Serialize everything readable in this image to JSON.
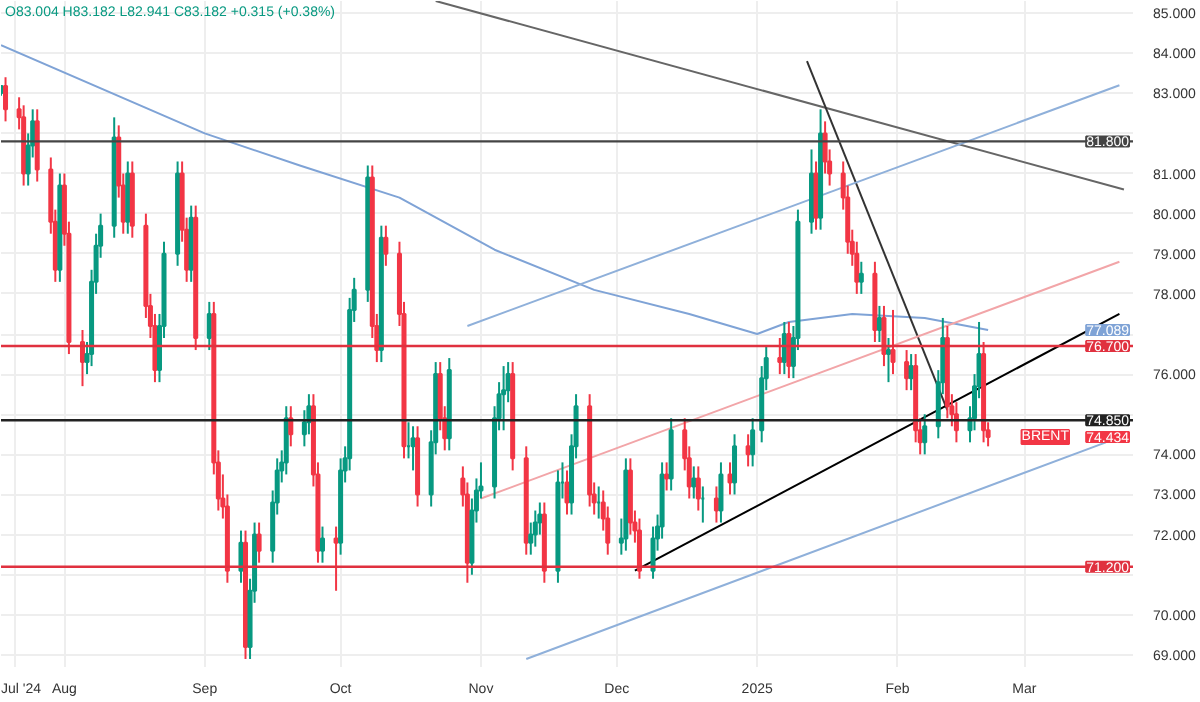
{
  "chart_data": {
    "type": "candlestick",
    "x": [
      "2024-07-18",
      "2024-07-19",
      "2024-07-22",
      "2024-07-23",
      "2024-07-24",
      "2024-07-25",
      "2024-07-26",
      "2024-07-29",
      "2024-07-30",
      "2024-07-31",
      "2024-08-01",
      "2024-08-02",
      "2024-08-05",
      "2024-08-06",
      "2024-08-07",
      "2024-08-08",
      "2024-08-09",
      "2024-08-12",
      "2024-08-13",
      "2024-08-14",
      "2024-08-15",
      "2024-08-16",
      "2024-08-19",
      "2024-08-20",
      "2024-08-21",
      "2024-08-22",
      "2024-08-23",
      "2024-08-26",
      "2024-08-27",
      "2024-08-28",
      "2024-08-29",
      "2024-08-30",
      "2024-09-02",
      "2024-09-03",
      "2024-09-04",
      "2024-09-05",
      "2024-09-06",
      "2024-09-09",
      "2024-09-10",
      "2024-09-11",
      "2024-09-12",
      "2024-09-13",
      "2024-09-16",
      "2024-09-17",
      "2024-09-18",
      "2024-09-19",
      "2024-09-20",
      "2024-09-23",
      "2024-09-24",
      "2024-09-25",
      "2024-09-26",
      "2024-09-27",
      "2024-09-30",
      "2024-10-01",
      "2024-10-02",
      "2024-10-03",
      "2024-10-04",
      "2024-10-07",
      "2024-10-08",
      "2024-10-09",
      "2024-10-10",
      "2024-10-11",
      "2024-10-14",
      "2024-10-15",
      "2024-10-16",
      "2024-10-17",
      "2024-10-18",
      "2024-10-21",
      "2024-10-22",
      "2024-10-23",
      "2024-10-24",
      "2024-10-25",
      "2024-10-28",
      "2024-10-29",
      "2024-10-30",
      "2024-10-31",
      "2024-11-01",
      "2024-11-04",
      "2024-11-05",
      "2024-11-06",
      "2024-11-07",
      "2024-11-08",
      "2024-11-11",
      "2024-11-12",
      "2024-11-13",
      "2024-11-14",
      "2024-11-15",
      "2024-11-18",
      "2024-11-19",
      "2024-11-20",
      "2024-11-21",
      "2024-11-22",
      "2024-11-25",
      "2024-11-26",
      "2024-11-27",
      "2024-11-28",
      "2024-11-29",
      "2024-12-02",
      "2024-12-03",
      "2024-12-04",
      "2024-12-05",
      "2024-12-06",
      "2024-12-09",
      "2024-12-10",
      "2024-12-11",
      "2024-12-12",
      "2024-12-13",
      "2024-12-16",
      "2024-12-17",
      "2024-12-18",
      "2024-12-19",
      "2024-12-20",
      "2024-12-23",
      "2024-12-24",
      "2024-12-26",
      "2024-12-27",
      "2024-12-30",
      "2024-12-31",
      "2025-01-02",
      "2025-01-03",
      "2025-01-06",
      "2025-01-07",
      "2025-01-08",
      "2025-01-09",
      "2025-01-10",
      "2025-01-13",
      "2025-01-14",
      "2025-01-15",
      "2025-01-16",
      "2025-01-17",
      "2025-01-20",
      "2025-01-21",
      "2025-01-22",
      "2025-01-23",
      "2025-01-24",
      "2025-01-27",
      "2025-01-28",
      "2025-01-29",
      "2025-01-30",
      "2025-01-31",
      "2025-02-03",
      "2025-02-04",
      "2025-02-05",
      "2025-02-06",
      "2025-02-07",
      "2025-02-10",
      "2025-02-11",
      "2025-02-12",
      "2025-02-13",
      "2025-02-14",
      "2025-02-17",
      "2025-02-18",
      "2025-02-19",
      "2025-02-20",
      "2025-02-21"
    ],
    "ohlc": [
      [
        83.004,
        83.182,
        82.941,
        83.182
      ],
      [
        83.18,
        83.4,
        82.3,
        82.6
      ],
      [
        82.6,
        82.9,
        82.1,
        82.4
      ],
      [
        82.4,
        82.7,
        80.7,
        81.0
      ],
      [
        81.0,
        82.0,
        80.7,
        81.7
      ],
      [
        81.7,
        82.6,
        81.4,
        82.3
      ],
      [
        82.3,
        82.6,
        80.8,
        81.1
      ],
      [
        81.1,
        81.4,
        79.5,
        79.8
      ],
      [
        79.8,
        80.1,
        78.3,
        78.6
      ],
      [
        78.6,
        81.0,
        78.3,
        80.7
      ],
      [
        80.7,
        81.0,
        79.2,
        79.5
      ],
      [
        79.5,
        79.8,
        76.5,
        76.8
      ],
      [
        76.8,
        77.1,
        75.7,
        76.3
      ],
      [
        76.3,
        76.8,
        76.0,
        76.5
      ],
      [
        76.5,
        78.6,
        76.2,
        78.3
      ],
      [
        78.3,
        79.5,
        78.0,
        79.2
      ],
      [
        79.2,
        80.0,
        78.9,
        79.7
      ],
      [
        79.7,
        82.4,
        79.4,
        81.9
      ],
      [
        81.9,
        82.2,
        80.4,
        80.7
      ],
      [
        80.7,
        81.0,
        79.5,
        79.8
      ],
      [
        79.8,
        81.3,
        79.5,
        81.0
      ],
      [
        81.0,
        81.3,
        79.4,
        79.7
      ],
      [
        79.7,
        80.0,
        77.4,
        77.7
      ],
      [
        77.7,
        78.0,
        76.9,
        77.2
      ],
      [
        77.2,
        77.5,
        75.8,
        76.1
      ],
      [
        76.1,
        77.5,
        75.8,
        77.2
      ],
      [
        77.2,
        79.3,
        76.9,
        79.0
      ],
      [
        79.0,
        81.3,
        78.7,
        81.0
      ],
      [
        81.0,
        81.3,
        79.3,
        79.6
      ],
      [
        79.6,
        79.9,
        78.3,
        78.6
      ],
      [
        78.6,
        80.2,
        78.3,
        79.9
      ],
      [
        79.9,
        80.2,
        76.6,
        76.9
      ],
      [
        76.9,
        77.8,
        76.6,
        77.5
      ],
      [
        77.5,
        77.8,
        73.5,
        73.8
      ],
      [
        73.8,
        74.1,
        72.6,
        72.9
      ],
      [
        72.9,
        73.5,
        72.4,
        72.7
      ],
      [
        72.7,
        73.0,
        70.8,
        71.1
      ],
      [
        71.1,
        72.1,
        70.8,
        71.8
      ],
      [
        71.8,
        72.1,
        68.9,
        69.2
      ],
      [
        69.2,
        70.9,
        68.9,
        70.6
      ],
      [
        70.6,
        72.3,
        70.3,
        72.0
      ],
      [
        72.0,
        72.3,
        71.3,
        71.6
      ],
      [
        71.6,
        73.1,
        71.3,
        72.8
      ],
      [
        72.8,
        73.9,
        72.5,
        73.6
      ],
      [
        73.6,
        74.1,
        73.3,
        73.8
      ],
      [
        73.8,
        75.2,
        73.5,
        74.9
      ],
      [
        74.9,
        75.2,
        74.2,
        74.5
      ],
      [
        74.5,
        75.1,
        74.2,
        74.8
      ],
      [
        74.8,
        75.5,
        74.5,
        75.2
      ],
      [
        75.2,
        75.5,
        73.2,
        73.5
      ],
      [
        73.5,
        73.8,
        71.3,
        71.6
      ],
      [
        71.6,
        72.2,
        71.3,
        71.9
      ],
      [
        71.9,
        72.2,
        70.6,
        71.8
      ],
      [
        71.8,
        73.9,
        71.5,
        73.6
      ],
      [
        73.6,
        74.2,
        73.3,
        73.9
      ],
      [
        73.9,
        77.9,
        73.6,
        77.6
      ],
      [
        77.6,
        78.4,
        77.3,
        78.1
      ],
      [
        78.1,
        81.2,
        77.8,
        80.9
      ],
      [
        80.9,
        81.2,
        76.9,
        77.2
      ],
      [
        77.2,
        77.5,
        76.3,
        76.6
      ],
      [
        76.6,
        79.7,
        76.3,
        79.4
      ],
      [
        79.4,
        79.7,
        78.7,
        79.0
      ],
      [
        79.0,
        79.3,
        77.2,
        77.5
      ],
      [
        77.5,
        77.8,
        73.9,
        74.2
      ],
      [
        74.2,
        74.8,
        73.9,
        74.2
      ],
      [
        74.2,
        74.7,
        73.6,
        74.4
      ],
      [
        74.4,
        74.7,
        72.7,
        73.0
      ],
      [
        73.0,
        74.6,
        72.7,
        74.3
      ],
      [
        74.3,
        76.3,
        74.0,
        76.0
      ],
      [
        76.0,
        76.3,
        74.6,
        74.9
      ],
      [
        74.9,
        75.2,
        74.1,
        74.4
      ],
      [
        74.4,
        76.4,
        74.1,
        76.1
      ],
      [
        73.4,
        73.7,
        72.7,
        73.0
      ],
      [
        73.0,
        73.3,
        70.8,
        71.3
      ],
      [
        71.3,
        72.9,
        71.0,
        72.6
      ],
      [
        72.6,
        73.4,
        72.3,
        73.1
      ],
      [
        73.1,
        73.8,
        72.9,
        73.2
      ],
      [
        73.2,
        75.2,
        72.9,
        74.9
      ],
      [
        74.9,
        75.8,
        74.6,
        75.5
      ],
      [
        75.5,
        76.2,
        74.6,
        75.6
      ],
      [
        75.6,
        76.3,
        75.3,
        76.0
      ],
      [
        76.0,
        76.3,
        73.6,
        73.9
      ],
      [
        73.9,
        74.2,
        71.5,
        71.8
      ],
      [
        71.8,
        72.3,
        71.5,
        72.0
      ],
      [
        72.0,
        72.6,
        71.7,
        72.3
      ],
      [
        72.3,
        72.8,
        72.0,
        72.5
      ],
      [
        72.5,
        72.8,
        70.8,
        71.1
      ],
      [
        71.1,
        73.6,
        70.8,
        73.3
      ],
      [
        73.3,
        73.8,
        72.9,
        73.3
      ],
      [
        73.3,
        73.6,
        72.5,
        72.8
      ],
      [
        72.8,
        74.5,
        72.5,
        74.2
      ],
      [
        74.2,
        75.5,
        73.9,
        75.2
      ],
      [
        75.2,
        75.5,
        72.7,
        73.0
      ],
      [
        73.0,
        73.3,
        72.5,
        72.8
      ],
      [
        72.8,
        73.2,
        72.4,
        72.8
      ],
      [
        72.8,
        73.1,
        72.1,
        72.4
      ],
      [
        72.4,
        72.7,
        71.5,
        71.8
      ],
      [
        71.8,
        72.4,
        71.5,
        71.9
      ],
      [
        71.9,
        73.9,
        71.6,
        73.6
      ],
      [
        73.6,
        73.9,
        72.0,
        72.3
      ],
      [
        72.3,
        72.6,
        71.8,
        72.1
      ],
      [
        72.1,
        72.4,
        70.9,
        71.1
      ],
      [
        71.1,
        72.2,
        70.9,
        71.9
      ],
      [
        71.9,
        72.5,
        71.6,
        72.2
      ],
      [
        72.2,
        73.8,
        71.9,
        73.5
      ],
      [
        73.5,
        73.8,
        73.1,
        73.4
      ],
      [
        73.4,
        74.9,
        73.1,
        74.6
      ],
      [
        74.6,
        74.9,
        73.6,
        73.9
      ],
      [
        73.9,
        74.2,
        72.9,
        73.2
      ],
      [
        73.2,
        73.7,
        72.9,
        73.4
      ],
      [
        73.4,
        73.7,
        72.6,
        72.9
      ],
      [
        72.9,
        73.2,
        72.3,
        72.9
      ],
      [
        72.9,
        73.2,
        72.3,
        72.6
      ],
      [
        72.6,
        73.8,
        72.3,
        73.5
      ],
      [
        73.5,
        73.8,
        73.0,
        73.3
      ],
      [
        73.3,
        74.5,
        73.0,
        74.2
      ],
      [
        74.2,
        74.5,
        73.7,
        74.0
      ],
      [
        74.0,
        74.9,
        73.7,
        74.6
      ],
      [
        74.6,
        76.2,
        74.3,
        75.9
      ],
      [
        75.9,
        76.7,
        75.6,
        76.4
      ],
      [
        76.4,
        76.9,
        76.0,
        76.3
      ],
      [
        76.3,
        77.3,
        76.0,
        77.0
      ],
      [
        77.0,
        77.3,
        75.9,
        76.2
      ],
      [
        76.2,
        77.2,
        75.9,
        76.9
      ],
      [
        76.9,
        80.1,
        76.6,
        79.8
      ],
      [
        79.8,
        81.6,
        79.5,
        81.0
      ],
      [
        81.0,
        81.3,
        79.6,
        79.9
      ],
      [
        79.9,
        82.6,
        79.6,
        82.0
      ],
      [
        82.0,
        82.3,
        81.0,
        81.3
      ],
      [
        81.3,
        81.6,
        80.7,
        81.0
      ],
      [
        81.0,
        81.3,
        80.1,
        80.4
      ],
      [
        80.4,
        80.7,
        79.0,
        79.3
      ],
      [
        79.3,
        79.6,
        78.7,
        79.0
      ],
      [
        79.0,
        79.3,
        78.0,
        78.3
      ],
      [
        78.3,
        78.8,
        78.0,
        78.5
      ],
      [
        78.5,
        78.8,
        76.8,
        77.1
      ],
      [
        77.1,
        77.7,
        76.8,
        77.4
      ],
      [
        77.4,
        77.7,
        76.2,
        76.5
      ],
      [
        76.5,
        76.9,
        75.8,
        76.6
      ],
      [
        76.6,
        77.6,
        76.0,
        76.3
      ],
      [
        76.3,
        76.6,
        75.6,
        75.9
      ],
      [
        75.9,
        76.5,
        75.6,
        76.2
      ],
      [
        76.2,
        76.5,
        74.3,
        74.6
      ],
      [
        74.6,
        74.9,
        74.0,
        74.3
      ],
      [
        74.3,
        75.0,
        74.0,
        74.7
      ],
      [
        74.7,
        76.1,
        74.4,
        75.8
      ],
      [
        75.8,
        77.4,
        75.5,
        76.9
      ],
      [
        76.9,
        77.2,
        74.9,
        75.2
      ],
      [
        75.2,
        75.5,
        74.7,
        75.0
      ],
      [
        75.0,
        75.3,
        74.3,
        74.6
      ],
      [
        74.6,
        75.2,
        74.3,
        74.9
      ],
      [
        74.9,
        76.0,
        74.6,
        75.7
      ],
      [
        75.7,
        77.3,
        75.4,
        76.5
      ],
      [
        76.5,
        76.8,
        74.3,
        74.6
      ],
      [
        74.6,
        74.8,
        74.2,
        74.434
      ]
    ],
    "colors": [
      "#089981",
      "#f23645",
      "#f23645",
      "#f23645",
      "#089981",
      "#089981",
      "#f23645",
      "#f23645",
      "#f23645",
      "#089981",
      "#f23645",
      "#f23645",
      "#f23645",
      "#089981",
      "#089981",
      "#089981",
      "#089981",
      "#089981",
      "#f23645",
      "#f23645",
      "#089981",
      "#f23645",
      "#f23645",
      "#f23645",
      "#f23645",
      "#089981",
      "#089981",
      "#089981",
      "#f23645",
      "#f23645",
      "#089981",
      "#f23645",
      "#089981",
      "#f23645",
      "#f23645",
      "#f23645",
      "#f23645",
      "#089981",
      "#f23645",
      "#089981",
      "#089981",
      "#f23645",
      "#089981",
      "#089981",
      "#089981",
      "#089981",
      "#f23645",
      "#089981",
      "#089981",
      "#f23645",
      "#f23645",
      "#089981",
      "#f23645",
      "#089981",
      "#089981",
      "#089981",
      "#089981",
      "#089981",
      "#f23645",
      "#f23645",
      "#089981",
      "#f23645",
      "#f23645",
      "#f23645",
      "#089981",
      "#089981",
      "#f23645",
      "#089981",
      "#089981",
      "#f23645",
      "#f23645",
      "#089981",
      "#f23645",
      "#f23645",
      "#089981",
      "#089981",
      "#089981",
      "#089981",
      "#089981",
      "#089981",
      "#089981",
      "#f23645",
      "#f23645",
      "#089981",
      "#089981",
      "#089981",
      "#f23645",
      "#089981",
      "#089981",
      "#f23645",
      "#089981",
      "#089981",
      "#f23645",
      "#f23645",
      "#089981",
      "#f23645",
      "#f23645",
      "#089981",
      "#089981",
      "#f23645",
      "#f23645",
      "#f23645",
      "#089981",
      "#089981",
      "#089981",
      "#f23645",
      "#089981",
      "#f23645",
      "#f23645",
      "#089981",
      "#f23645",
      "#089981",
      "#f23645",
      "#089981",
      "#f23645",
      "#089981",
      "#f23645",
      "#089981",
      "#089981",
      "#089981",
      "#f23645",
      "#089981",
      "#f23645",
      "#089981",
      "#089981",
      "#089981",
      "#f23645",
      "#089981",
      "#f23645",
      "#f23645",
      "#f23645",
      "#f23645",
      "#f23645",
      "#f23645",
      "#089981",
      "#f23645",
      "#089981",
      "#f23645",
      "#089981",
      "#f23645",
      "#f23645",
      "#089981",
      "#f23645",
      "#f23645",
      "#089981",
      "#089981",
      "#089981",
      "#f23645",
      "#f23645",
      "#f23645",
      "#089981",
      "#089981",
      "#089981",
      "#f23645",
      "#f23645"
    ],
    "series": [
      {
        "type": "line",
        "color": "#7fa3d6",
        "x": [
          "2024-07-18",
          "2024-09-01",
          "2024-09-22",
          "2024-10-14",
          "2024-11-04",
          "2024-11-26",
          "2024-12-17",
          "2025-01-01",
          "2025-01-08",
          "2025-01-22",
          "2025-02-07",
          "2025-02-21"
        ],
        "values": [
          84.2,
          82.0,
          81.2,
          80.4,
          79.1,
          78.1,
          77.5,
          77.0,
          77.3,
          77.5,
          77.4,
          77.1
        ]
      },
      {
        "type": "line",
        "color": "#666666",
        "x": [
          "2024-10-22",
          "2025-03-23"
        ],
        "values": [
          85.3,
          80.6
        ]
      },
      {
        "type": "line",
        "color": "#333333",
        "x": [
          "2025-01-12",
          "2025-02-12"
        ],
        "values": [
          83.8,
          75.1
        ]
      },
      {
        "type": "line",
        "color": "#000000",
        "x": [
          "2024-12-05",
          "2025-03-22"
        ],
        "values": [
          71.1,
          77.5
        ]
      },
      {
        "type": "line",
        "color": "#8fb0da",
        "x": [
          "2024-10-29",
          "2025-03-22"
        ],
        "values": [
          77.2,
          83.2
        ]
      },
      {
        "type": "line",
        "color": "#8fb0da",
        "x": [
          "2024-11-11",
          "2025-03-19"
        ],
        "values": [
          68.9,
          74.3
        ]
      },
      {
        "type": "line",
        "color": "#f2a5a8",
        "x": [
          "2024-11-01",
          "2025-03-22"
        ],
        "values": [
          72.9,
          78.8
        ]
      }
    ],
    "ref_lines": [
      {
        "axis": "y",
        "value": 81.8,
        "label": "81.800",
        "color": "#444444"
      },
      {
        "axis": "y",
        "value": 76.7,
        "label": "76.700",
        "color": "#e0313f"
      },
      {
        "axis": "y",
        "value": 74.85,
        "label": "74.850",
        "color": "#222222"
      },
      {
        "axis": "y",
        "value": 71.2,
        "label": "71.200",
        "color": "#e0313f"
      }
    ],
    "annotations": [
      "O83.004 H83.182 L82.941 C83.182 +0.315 (+0.38%)",
      "77.089",
      "BRENT",
      "74.434"
    ],
    "xlim": [
      "2024-07-18",
      "2025-03-25"
    ],
    "xticks": [
      {
        "value": "2024-07-21",
        "label": "Jul '24"
      },
      {
        "value": "2024-08-01",
        "label": "Aug"
      },
      {
        "value": "2024-09-01",
        "label": "Sep"
      },
      {
        "value": "2024-10-01",
        "label": "Oct"
      },
      {
        "value": "2024-11-01",
        "label": "Nov"
      },
      {
        "value": "2024-12-01",
        "label": "Dec"
      },
      {
        "value": "2025-01-01",
        "label": "2025"
      },
      {
        "value": "2025-02-01",
        "label": "Feb"
      },
      {
        "value": "2025-03-01",
        "label": "Mar"
      }
    ],
    "ylim": [
      68.7,
      85.3
    ],
    "yticks": [
      {
        "value": 69,
        "label": "69.000"
      },
      {
        "value": 70,
        "label": "70.000"
      },
      {
        "value": 71,
        "label": null
      },
      {
        "value": 72,
        "label": "72.000"
      },
      {
        "value": 73,
        "label": "73.000"
      },
      {
        "value": 74,
        "label": "74.000"
      },
      {
        "value": 75,
        "label": null
      },
      {
        "value": 76,
        "label": "76.000"
      },
      {
        "value": 77,
        "label": null
      },
      {
        "value": 78,
        "label": "78.000"
      },
      {
        "value": 79,
        "label": "79.000"
      },
      {
        "value": 80,
        "label": "80.000"
      },
      {
        "value": 81,
        "label": "81.000"
      },
      {
        "value": 82,
        "label": null
      },
      {
        "value": 83,
        "label": "83.000"
      },
      {
        "value": 84,
        "label": "84.000"
      },
      {
        "value": 85,
        "label": "85.000"
      }
    ],
    "grid": true
  }
}
